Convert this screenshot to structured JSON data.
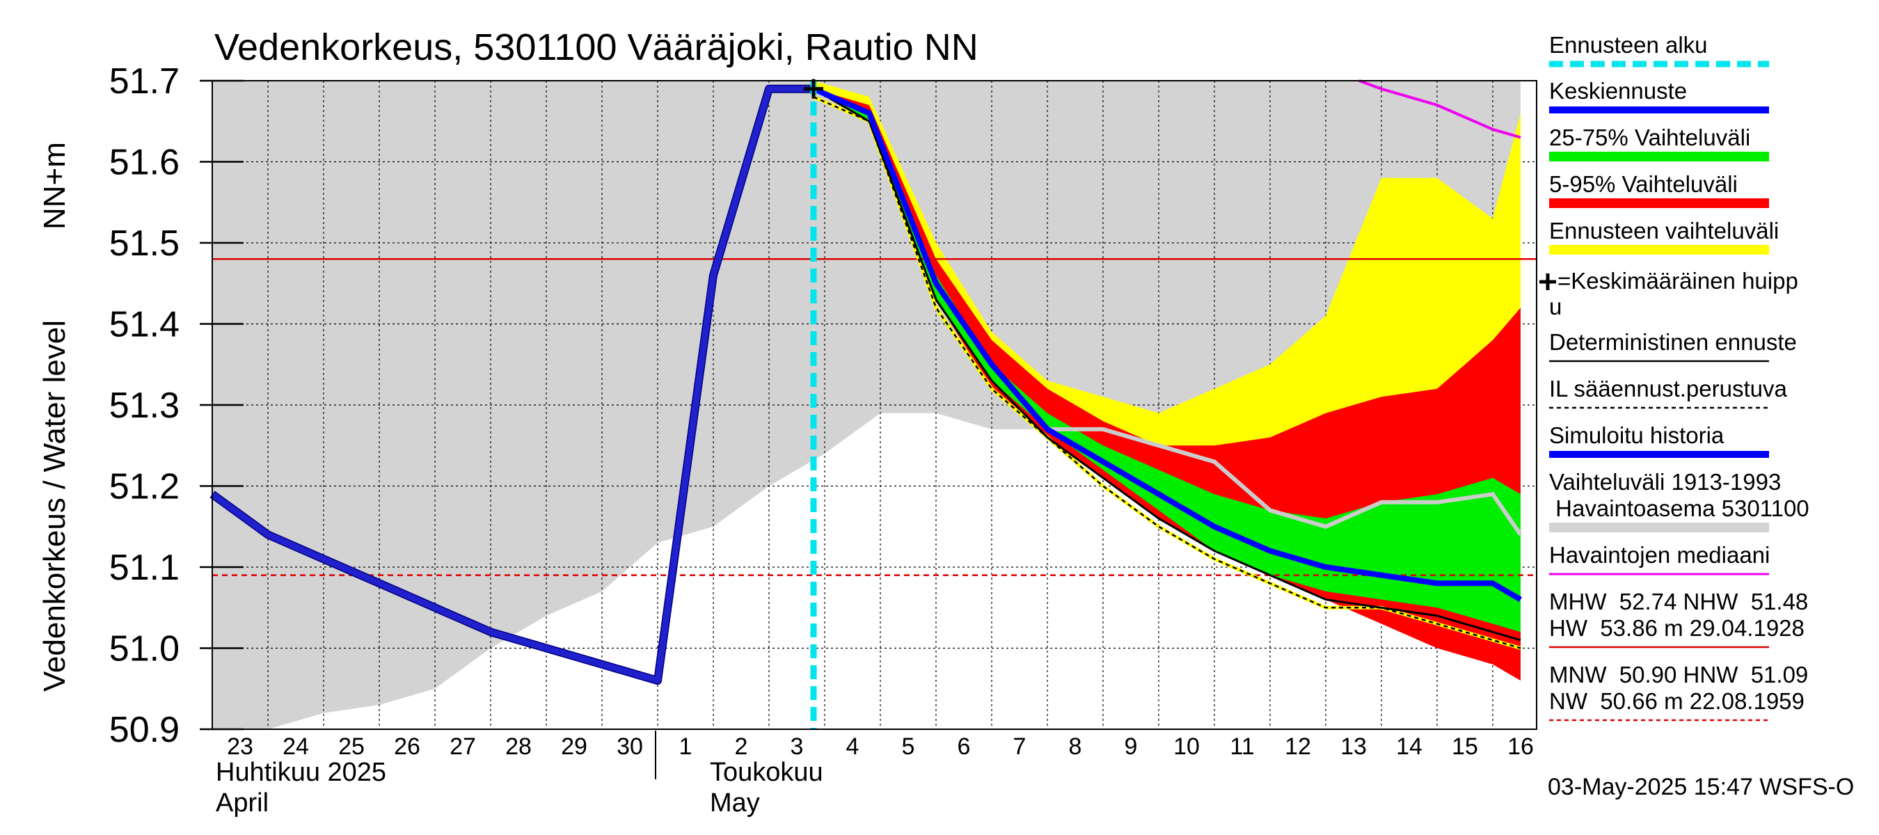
{
  "title": "Vedenkorkeus, 5301100 Vääräjoki, Rautio NN",
  "yaxis": {
    "label": "Vedenkorkeus / Water level",
    "unit": "NN+m",
    "ticks": [
      "51.7",
      "51.6",
      "51.5",
      "51.4",
      "51.3",
      "51.2",
      "51.1",
      "51.0",
      "50.9"
    ]
  },
  "xaxis": {
    "day_labels": [
      "23",
      "24",
      "25",
      "26",
      "27",
      "28",
      "29",
      "30",
      "1",
      "2",
      "3",
      "4",
      "5",
      "6",
      "7",
      "8",
      "9",
      "10",
      "11",
      "12",
      "13",
      "14",
      "15",
      "16"
    ],
    "month1_fi": "Huhtikuu  2025",
    "month1_en": "April",
    "month2_fi": "Toukokuu",
    "month2_en": "May"
  },
  "legend": {
    "forecast_start": "Ennusteen alku",
    "mean_forecast": "Keskiennuste",
    "range_25_75": "25-75% Vaihteluväli",
    "range_5_95": "5-95% Vaihteluväli",
    "forecast_range": "Ennusteen vaihteluväli",
    "mean_peak_line1": "=Keskimääräinen huipp",
    "mean_peak_line2": "u",
    "deterministic": "Deterministinen ennuste",
    "il_forecast": "IL sääennust.perustuva",
    "simulated": "Simuloitu historia",
    "hist_range_line1": "Vaihteluväli 1913-1993",
    "hist_range_line2": " Havaintoasema 5301100",
    "obs_median": "Havaintojen mediaani",
    "mhw_line1": "MHW  52.74 NHW  51.48",
    "mhw_line2": "HW  53.86 m 29.04.1928",
    "mnw_line1": "MNW  50.90 HNW  51.09",
    "mnw_line2": "NW  50.66 m 22.08.1959"
  },
  "footer": "03-May-2025 15:47 WSFS-O",
  "colors": {
    "forecast_start": "#00e5ee",
    "mean_forecast": "#0000ff",
    "range_25_75": "#00ee00",
    "range_5_95": "#ff0000",
    "forecast_range": "#ffff00",
    "hist_range": "#d3d3d3",
    "obs_median": "#ee00ee",
    "nhw_line": "#dd0000",
    "simulated": "#2020cc",
    "obs_hist_grey": "#cccccc"
  },
  "chart_data": {
    "type": "line",
    "x_unit": "days from 23 April 2025",
    "ylim": [
      50.9,
      51.7
    ],
    "xlim": [
      0,
      23.5
    ],
    "forecast_start_x": 10.8,
    "nhw": 51.48,
    "hnw": 51.09,
    "mean_peak": {
      "x": 10.8,
      "y": 51.69
    },
    "hist_range": {
      "upper": [
        [
          0,
          51.7
        ],
        [
          21,
          51.7
        ],
        [
          23.5,
          51.7
        ]
      ],
      "lower": [
        [
          0,
          50.88
        ],
        [
          1,
          50.89
        ],
        [
          2,
          50.92
        ],
        [
          3,
          50.93
        ],
        [
          4,
          50.95
        ],
        [
          5,
          51.0
        ],
        [
          6,
          51.04
        ],
        [
          7,
          51.07
        ],
        [
          8,
          51.13
        ],
        [
          9,
          51.15
        ],
        [
          10,
          51.2
        ],
        [
          11,
          51.24
        ],
        [
          12,
          51.29
        ],
        [
          13,
          51.29
        ],
        [
          14,
          51.27
        ],
        [
          15,
          51.27
        ],
        [
          16,
          51.27
        ],
        [
          17,
          51.25
        ],
        [
          18,
          51.26
        ],
        [
          19,
          51.27
        ],
        [
          20,
          51.28
        ],
        [
          21,
          51.3
        ],
        [
          22,
          51.32
        ],
        [
          23.5,
          51.35
        ]
      ]
    },
    "forecast_range": {
      "upper": [
        [
          10.8,
          51.7
        ],
        [
          11.8,
          51.68
        ],
        [
          13,
          51.5
        ],
        [
          14,
          51.39
        ],
        [
          15,
          51.33
        ],
        [
          16,
          51.31
        ],
        [
          17,
          51.29
        ],
        [
          18,
          51.32
        ],
        [
          19,
          51.35
        ],
        [
          20,
          51.41
        ],
        [
          21,
          51.58
        ],
        [
          22,
          51.58
        ],
        [
          23,
          51.53
        ],
        [
          23.5,
          51.66
        ]
      ],
      "lower": [
        [
          10.8,
          51.69
        ],
        [
          11.8,
          51.65
        ],
        [
          13,
          51.43
        ],
        [
          14,
          51.32
        ],
        [
          15,
          51.26
        ],
        [
          16,
          51.21
        ],
        [
          17,
          51.16
        ],
        [
          18,
          51.12
        ],
        [
          19,
          51.09
        ],
        [
          20,
          51.06
        ],
        [
          21,
          51.04
        ],
        [
          22,
          51.02
        ],
        [
          23,
          51.0
        ],
        [
          23.5,
          50.99
        ]
      ]
    },
    "range_5_95": {
      "upper": [
        [
          10.8,
          51.69
        ],
        [
          11.8,
          51.67
        ],
        [
          13,
          51.48
        ],
        [
          14,
          51.38
        ],
        [
          15,
          51.32
        ],
        [
          16,
          51.28
        ],
        [
          17,
          51.25
        ],
        [
          18,
          51.25
        ],
        [
          19,
          51.26
        ],
        [
          20,
          51.29
        ],
        [
          21,
          51.31
        ],
        [
          22,
          51.32
        ],
        [
          23,
          51.38
        ],
        [
          23.5,
          51.42
        ]
      ],
      "lower": [
        [
          10.8,
          51.69
        ],
        [
          11.8,
          51.65
        ],
        [
          13,
          51.43
        ],
        [
          14,
          51.32
        ],
        [
          15,
          51.26
        ],
        [
          16,
          51.21
        ],
        [
          17,
          51.16
        ],
        [
          18,
          51.12
        ],
        [
          19,
          51.09
        ],
        [
          20,
          51.06
        ],
        [
          21,
          51.03
        ],
        [
          22,
          51.0
        ],
        [
          23,
          50.98
        ],
        [
          23.5,
          50.96
        ]
      ]
    },
    "range_25_75": {
      "upper": [
        [
          10.8,
          51.69
        ],
        [
          11.8,
          51.66
        ],
        [
          13,
          51.46
        ],
        [
          14,
          51.35
        ],
        [
          15,
          51.29
        ],
        [
          16,
          51.25
        ],
        [
          17,
          51.22
        ],
        [
          18,
          51.19
        ],
        [
          19,
          51.17
        ],
        [
          20,
          51.16
        ],
        [
          21,
          51.18
        ],
        [
          22,
          51.19
        ],
        [
          23,
          51.21
        ],
        [
          23.5,
          51.19
        ]
      ],
      "lower": [
        [
          10.8,
          51.69
        ],
        [
          11.8,
          51.65
        ],
        [
          13,
          51.43
        ],
        [
          14,
          51.33
        ],
        [
          15,
          51.27
        ],
        [
          16,
          51.22
        ],
        [
          17,
          51.17
        ],
        [
          18,
          51.12
        ],
        [
          19,
          51.09
        ],
        [
          20,
          51.07
        ],
        [
          21,
          51.06
        ],
        [
          22,
          51.05
        ],
        [
          23,
          51.03
        ],
        [
          23.5,
          51.02
        ]
      ]
    },
    "mean_forecast": [
      [
        10.8,
        51.69
      ],
      [
        11.8,
        51.66
      ],
      [
        13,
        51.45
      ],
      [
        14,
        51.35
      ],
      [
        15,
        51.27
      ],
      [
        16,
        51.23
      ],
      [
        17,
        51.19
      ],
      [
        18,
        51.15
      ],
      [
        19,
        51.12
      ],
      [
        20,
        51.1
      ],
      [
        21,
        51.09
      ],
      [
        22,
        51.08
      ],
      [
        23,
        51.08
      ],
      [
        23.5,
        51.06
      ]
    ],
    "deterministic": [
      [
        10.8,
        51.69
      ],
      [
        11.8,
        51.65
      ],
      [
        13,
        51.43
      ],
      [
        14,
        51.33
      ],
      [
        15,
        51.26
      ],
      [
        16,
        51.21
      ],
      [
        17,
        51.16
      ],
      [
        18,
        51.12
      ],
      [
        19,
        51.09
      ],
      [
        20,
        51.06
      ],
      [
        21,
        51.05
      ],
      [
        22,
        51.04
      ],
      [
        23,
        51.02
      ],
      [
        23.5,
        51.01
      ]
    ],
    "il_forecast": [
      [
        10.8,
        51.68
      ],
      [
        11.8,
        51.65
      ],
      [
        13,
        51.42
      ],
      [
        14,
        51.32
      ],
      [
        15,
        51.26
      ],
      [
        16,
        51.2
      ],
      [
        17,
        51.15
      ],
      [
        18,
        51.11
      ],
      [
        19,
        51.08
      ],
      [
        20,
        51.05
      ],
      [
        21,
        51.05
      ],
      [
        22,
        51.03
      ],
      [
        23,
        51.01
      ],
      [
        23.5,
        51.0
      ]
    ],
    "simulated": [
      [
        0,
        51.19
      ],
      [
        1,
        51.14
      ],
      [
        2,
        51.11
      ],
      [
        3,
        51.08
      ],
      [
        4,
        51.05
      ],
      [
        5,
        51.02
      ],
      [
        6,
        51.0
      ],
      [
        7,
        50.98
      ],
      [
        8,
        50.96
      ],
      [
        9,
        51.46
      ],
      [
        10,
        51.69
      ],
      [
        10.8,
        51.69
      ]
    ],
    "obs_history": [
      [
        15,
        51.27
      ],
      [
        16,
        51.27
      ],
      [
        17,
        51.25
      ],
      [
        18,
        51.23
      ],
      [
        19,
        51.17
      ],
      [
        20,
        51.15
      ],
      [
        21,
        51.18
      ],
      [
        22,
        51.18
      ],
      [
        23,
        51.19
      ],
      [
        23.5,
        51.14
      ]
    ],
    "obs_median": [
      [
        20.6,
        51.7
      ],
      [
        21,
        51.69
      ],
      [
        22,
        51.67
      ],
      [
        23,
        51.64
      ],
      [
        23.5,
        51.63
      ]
    ]
  }
}
